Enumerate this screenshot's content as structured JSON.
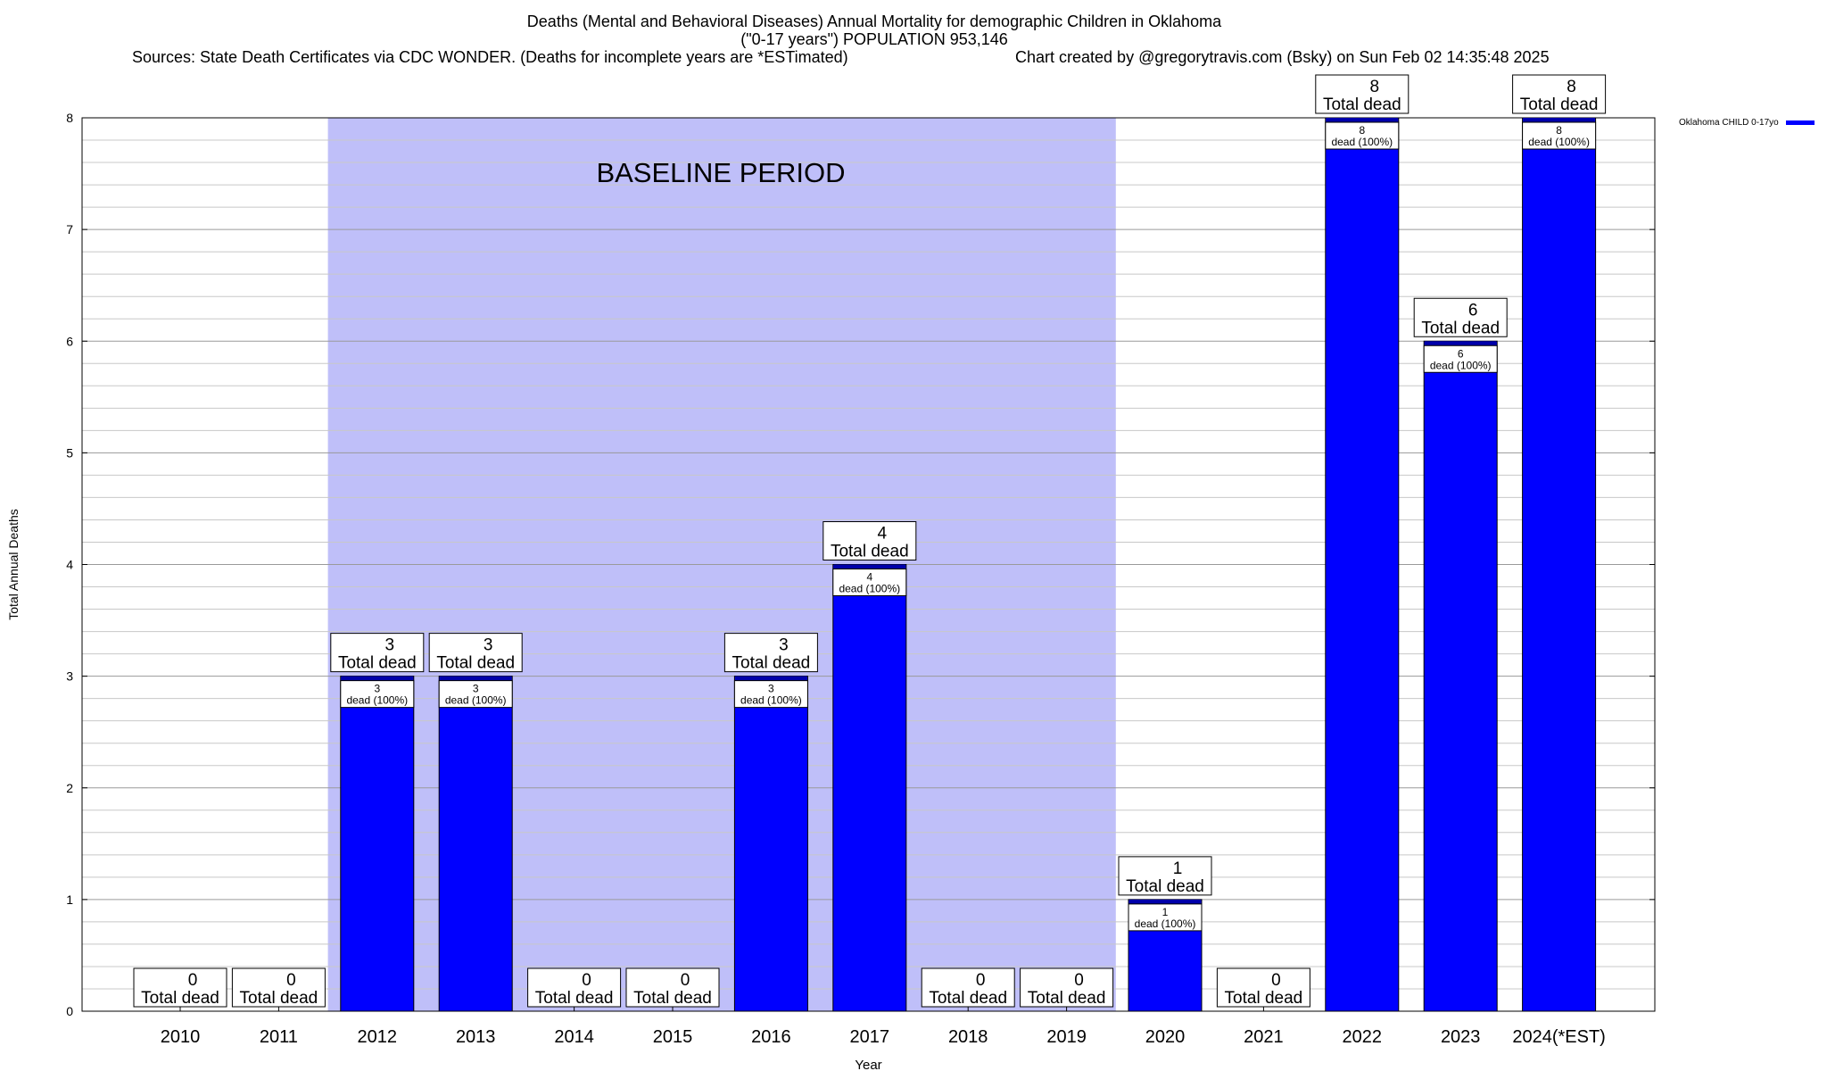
{
  "header": {
    "title_line1": "Deaths (Mental and Behavioral Diseases) Annual Mortality for demographic Children in Oklahoma",
    "title_line2": "(\"0-17 years\") POPULATION 953,146",
    "sources": "Sources: State Death Certificates via CDC WONDER. (Deaths for incomplete years are *ESTimated)",
    "credit": "Chart created by @gregorytravis.com (Bsky) on Sun Feb 02 14:35:48 2025"
  },
  "chart_data": {
    "type": "bar",
    "title": "Deaths (Mental and Behavioral Diseases) Annual Mortality for demographic Children in Oklahoma",
    "xlabel": "Year",
    "ylabel": "Total Annual Deaths",
    "ylim": [
      0,
      8
    ],
    "yticks": [
      0,
      1,
      2,
      3,
      4,
      5,
      6,
      7,
      8
    ],
    "grid": true,
    "legend_position": "top-right",
    "categories": [
      "2010",
      "2011",
      "2012",
      "2013",
      "2014",
      "2015",
      "2016",
      "2017",
      "2018",
      "2019",
      "2020",
      "2021",
      "2022",
      "2023",
      "2024(*EST)"
    ],
    "series": [
      {
        "name": "Oklahoma CHILD 0-17yo",
        "color": "#0000ff",
        "values": [
          0,
          0,
          3,
          3,
          0,
          0,
          3,
          4,
          0,
          0,
          1,
          0,
          8,
          6,
          8
        ]
      }
    ],
    "total_label_text": "Total dead",
    "inner_label_text": "dead (100%)",
    "baseline_region": {
      "label": "BASELINE PERIOD",
      "start_category": "2012",
      "end_category": "2019",
      "color": "#bfbff9"
    }
  }
}
